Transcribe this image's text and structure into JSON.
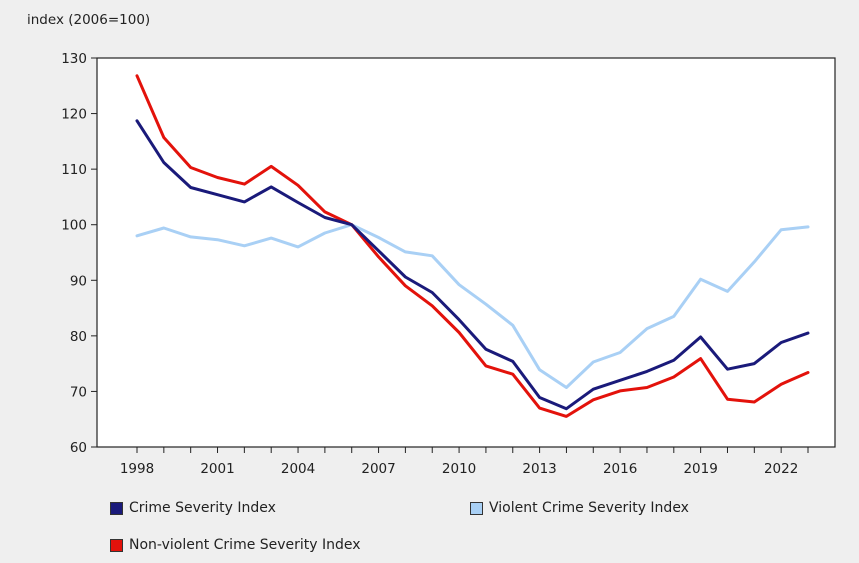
{
  "chart_data": {
    "type": "line",
    "title": "",
    "ylabel": "index (2006=100)",
    "xlabel": "",
    "ylim": [
      60,
      130
    ],
    "yticks": [
      60,
      70,
      80,
      90,
      100,
      110,
      120,
      130
    ],
    "xlim": [
      1998,
      2023
    ],
    "xticks": [
      1998,
      2001,
      2004,
      2007,
      2010,
      2013,
      2016,
      2019,
      2022
    ],
    "grid": false,
    "legend_position": "bottom",
    "x": [
      1998,
      1999,
      2000,
      2001,
      2002,
      2003,
      2004,
      2005,
      2006,
      2007,
      2008,
      2009,
      2010,
      2011,
      2012,
      2013,
      2014,
      2015,
      2016,
      2017,
      2018,
      2019,
      2020,
      2021,
      2022,
      2023
    ],
    "series": [
      {
        "name": "Crime Severity Index",
        "color": "#1a1a7a",
        "values": [
          118.7,
          111.2,
          106.7,
          105.4,
          104.1,
          106.8,
          104.0,
          101.3,
          100.0,
          95.3,
          90.6,
          87.8,
          82.9,
          77.6,
          75.4,
          68.9,
          66.9,
          70.4,
          72.0,
          73.6,
          75.6,
          79.8,
          74.0,
          75.0,
          78.8,
          80.5
        ]
      },
      {
        "name": "Violent Crime Severity Index",
        "color": "#a9d0f5",
        "values": [
          98.0,
          99.4,
          97.8,
          97.3,
          96.2,
          97.6,
          96.0,
          98.5,
          100.0,
          97.7,
          95.1,
          94.4,
          89.2,
          85.7,
          81.9,
          73.9,
          70.7,
          75.3,
          77.0,
          81.3,
          83.5,
          90.2,
          88.0,
          93.3,
          99.1,
          99.6
        ]
      },
      {
        "name": "Non-violent Crime Severity Index",
        "color": "#e3120b",
        "values": [
          126.8,
          115.7,
          110.3,
          108.5,
          107.3,
          110.5,
          107.1,
          102.3,
          100.0,
          94.2,
          89.0,
          85.4,
          80.6,
          74.6,
          73.1,
          67.0,
          65.5,
          68.5,
          70.1,
          70.7,
          72.6,
          75.9,
          68.6,
          68.1,
          71.3,
          73.4
        ]
      }
    ]
  }
}
